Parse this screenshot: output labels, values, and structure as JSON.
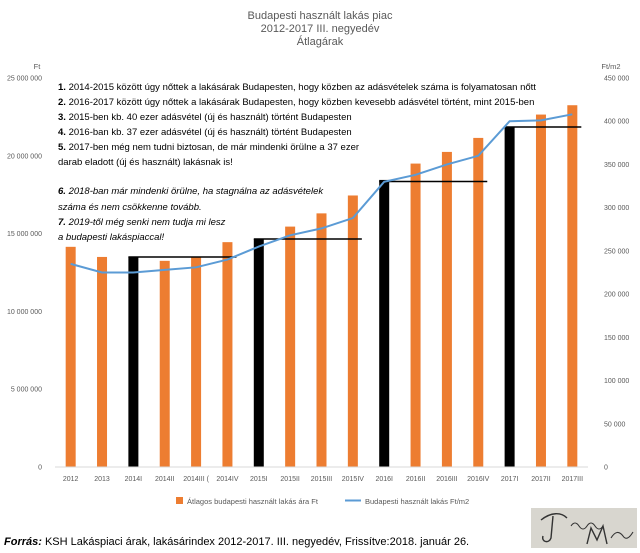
{
  "chart_data": {
    "type": "bar",
    "title": [
      "Budapesti használt lakás piac",
      "2012-2017 III. negyedév",
      "Átlagárak"
    ],
    "categories": [
      "2012",
      "2013",
      "2014I",
      "2014II",
      "2014III (",
      "2014IV",
      "2015I",
      "2015II",
      "2015III",
      "2015IV",
      "2016I",
      "2016II",
      "2016III",
      "2016IV",
      "2017I",
      "2017II",
      "2017III"
    ],
    "left_axis": {
      "unit": "Ft",
      "ylim": [
        0,
        25000000
      ],
      "ticks": [
        "0",
        "5 000 000",
        "10 000 000",
        "15 000 000",
        "20 000 000",
        "25 000 000"
      ]
    },
    "right_axis": {
      "unit": "Ft/m2",
      "ylim": [
        0,
        450000
      ],
      "ticks": [
        "0",
        "50 000",
        "100 000",
        "150 000",
        "200 000",
        "250 000",
        "300 000",
        "350 000",
        "400 000",
        "450 000"
      ]
    },
    "series": [
      {
        "name": "Átlagos budapesti használt lakás ára Ft",
        "axis": "left",
        "type": "bar",
        "color": "#ed7d31",
        "highlight_color": "#000000",
        "highlight_categories": [
          "2014I",
          "2015I",
          "2016I",
          "2017I"
        ],
        "values": [
          14150000,
          13500000,
          13500000,
          13250000,
          13500000,
          14450000,
          14650000,
          15450000,
          16300000,
          17450000,
          18450000,
          19500000,
          20250000,
          21150000,
          21850000,
          22650000,
          23250000
        ]
      },
      {
        "name": "Budapesti használt lakás Ft/m2",
        "axis": "right",
        "type": "line",
        "color": "#5b9bd5",
        "values": [
          235000,
          225000,
          225000,
          228000,
          231000,
          240000,
          255000,
          268000,
          276000,
          288000,
          330000,
          338000,
          350000,
          360000,
          400000,
          401000,
          408000
        ]
      }
    ],
    "step_lines": [
      {
        "from": "2014I",
        "to": "2014IV",
        "value": 13500000
      },
      {
        "from": "2015I",
        "to": "2015IV",
        "value": 14650000
      },
      {
        "from": "2016I",
        "to": "2016IV",
        "value": 18350000
      },
      {
        "from": "2017I",
        "to": "2017III",
        "value": 21850000
      }
    ],
    "grid": false,
    "legend": "bottom"
  },
  "annotations": [
    {
      "style": "bold-num",
      "num": "1.",
      "text": "2014-2015 között úgy nőttek a lakásárak Budapesten, hogy közben  az adásvételek száma is folyamatosan nőtt"
    },
    {
      "style": "bold-num",
      "num": "2.",
      "text": "2016-2017 között úgy nőttek a lakásárak Budapesten, hogy közben  kevesebb adásvétel történt, mint 2015-ben"
    },
    {
      "style": "bold-num",
      "num": "3.",
      "text": "2015-ben kb. 40 ezer adásvétel (új és használt) történt Budapesten"
    },
    {
      "style": "bold-num",
      "num": "4.",
      "text": "2016-ban kb. 37 ezer adásvétel (új és használt) történt Budapesten"
    },
    {
      "style": "bold-num",
      "num": "5.",
      "text": "2017-ben még nem tudni biztosan, de már mindenki örülne a 37 ezer"
    },
    {
      "style": "cont",
      "num": "",
      "text": "darab eladott (új és használt) lakásnak is!"
    },
    {
      "style": "italic-num",
      "num": "6.",
      "text": "2018-ban már mindenki örülne, ha stagnálna az adásvételek"
    },
    {
      "style": "italic-cont",
      "num": "",
      "text": "száma és nem csökkenne tovább."
    },
    {
      "style": "italic-num",
      "num": "7.",
      "text": "2019-től még senki nem tudja mi lesz"
    },
    {
      "style": "italic-cont",
      "num": "",
      "text": "a budapesti lakáspiaccal!"
    }
  ],
  "source": {
    "label": "Forrás:",
    "text": " KSH Lakáspiaci árak, lakásárindex 2012-2017. III. negyedév, Frissítve:2018. január 26."
  },
  "logo": {
    "description_text": "Jugulan Mihály"
  }
}
